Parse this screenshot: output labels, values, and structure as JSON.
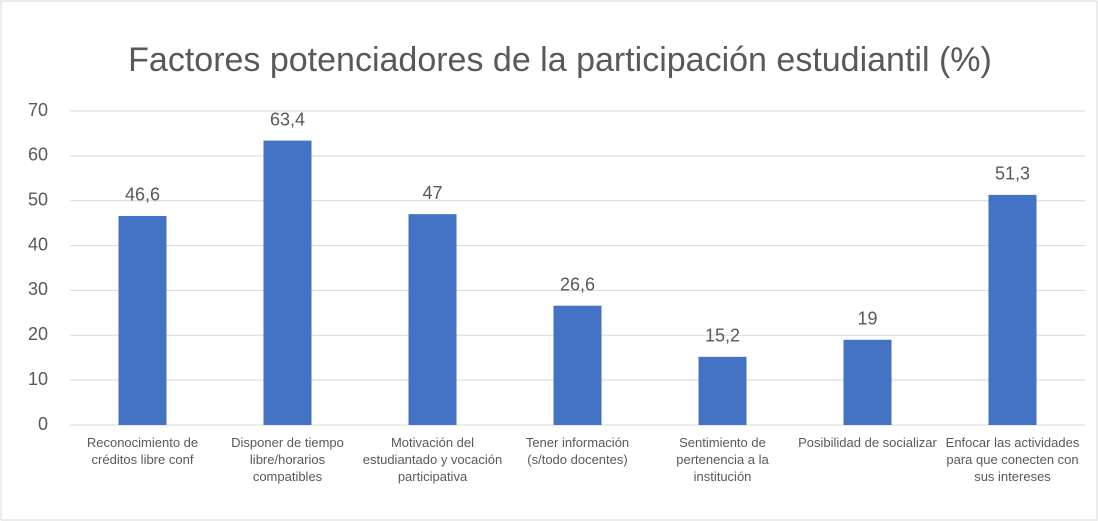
{
  "chart_data": {
    "type": "bar",
    "title": "Factores potenciadores de la participación estudiantil (%)",
    "categories": [
      "Reconocimiento de créditos libre conf",
      "Disponer de tiempo libre/horarios compatibles",
      "Motivación del estudiantado y vocación participativa",
      "Tener información (s/todo docentes)",
      "Sentimiento de pertenencia a la institución",
      "Posibilidad de socializar",
      "Enfocar las actividades para que conecten con sus intereses"
    ],
    "values": [
      46.6,
      63.4,
      47,
      26.6,
      15.2,
      19,
      51.3
    ],
    "value_labels": [
      "46,6",
      "63,4",
      "47",
      "26,6",
      "15,2",
      "19",
      "51,3"
    ],
    "color": "#4472c4",
    "ylim": [
      0,
      70
    ],
    "yticks": [
      0,
      10,
      20,
      30,
      40,
      50,
      60,
      70
    ],
    "grid": true
  }
}
